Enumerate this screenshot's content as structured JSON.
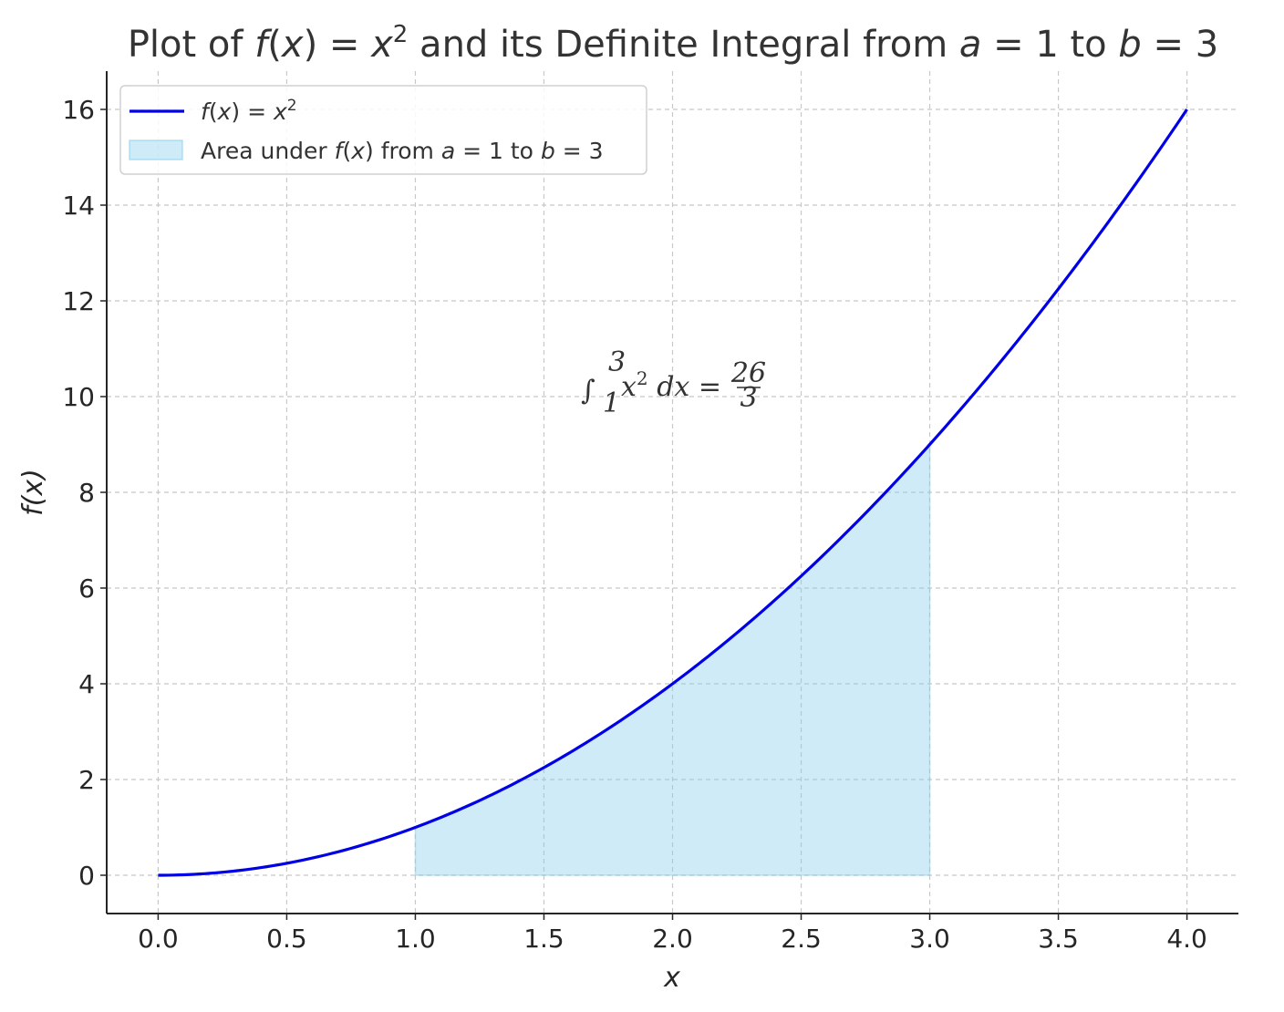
{
  "chart_data": {
    "type": "line",
    "title_parts": [
      "Plot of ",
      "f",
      "(",
      "x",
      ") = ",
      "x",
      "2",
      " and its Definite Integral from ",
      "a",
      " = 1 to ",
      "b",
      " = 3"
    ],
    "xlabel": "x",
    "ylabel": "f(x)",
    "xlim": [
      -0.2,
      4.2
    ],
    "ylim": [
      -0.8,
      16.8
    ],
    "x_ticks": [
      0.0,
      0.5,
      1.0,
      1.5,
      2.0,
      2.5,
      3.0,
      3.5,
      4.0
    ],
    "x_tick_labels": [
      "0.0",
      "0.5",
      "1.0",
      "1.5",
      "2.0",
      "2.5",
      "3.0",
      "3.5",
      "4.0"
    ],
    "y_ticks": [
      0,
      2,
      4,
      6,
      8,
      10,
      12,
      14,
      16
    ],
    "y_tick_labels": [
      "0",
      "2",
      "4",
      "6",
      "8",
      "10",
      "12",
      "14",
      "16"
    ],
    "grid": true,
    "legend_position": "top-left",
    "series": [
      {
        "name": "f(x) = x^2",
        "kind": "line",
        "color": "#0000e6",
        "x_range": [
          0,
          4
        ],
        "function": "x^2"
      },
      {
        "name": "Area under f(x) from a = 1 to b = 3",
        "kind": "area",
        "color": "#87ceeb",
        "x_range": [
          1,
          3
        ],
        "function": "x^2"
      }
    ],
    "legend": {
      "line_label_parts": [
        "f",
        "(",
        "x",
        ") = ",
        "x",
        "2"
      ],
      "area_label_parts": [
        "Area under ",
        "f",
        "(",
        "x",
        ") from ",
        "a",
        " = 1 to ",
        "b",
        " = 3"
      ]
    },
    "annotation": {
      "text_parts": [
        "∫",
        "3",
        "1",
        "x",
        "2",
        " dx",
        " = ",
        "26",
        "3"
      ],
      "x": 2.0,
      "y": 10
    }
  }
}
